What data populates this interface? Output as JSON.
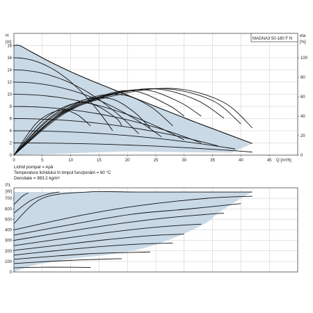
{
  "colors": {
    "fill": "#c9d9e6",
    "curve": "#111111",
    "frame": "#444444",
    "grid": "#bbbbbb"
  },
  "chart_data": [
    {
      "type": "line",
      "title": "MAGNA3 50-180 F N",
      "ylabel_left": "H",
      "ylabel_left_unit": "[m]",
      "ylabel_right": "eta",
      "ylabel_right_unit": "[%]",
      "xlabel": "Q [m³/h]",
      "xlim": [
        0,
        50
      ],
      "ylim": [
        0,
        20
      ],
      "eta_lim": [
        0,
        125
      ],
      "x_ticks": [
        "0",
        "5",
        "10",
        "15",
        "20",
        "25",
        "30",
        "35",
        "40",
        "45"
      ],
      "y_ticks": [
        "0",
        "2",
        "4",
        "6",
        "8",
        "10",
        "12",
        "14",
        "16",
        "18"
      ],
      "eta_ticks": [
        "0",
        "20",
        "40",
        "60",
        "80",
        "100"
      ],
      "grid": true,
      "envelope": {
        "x": [
          0,
          1,
          3,
          6,
          10,
          14,
          18,
          22,
          26,
          29,
          32,
          36,
          40,
          42
        ],
        "y": [
          18.0,
          18.0,
          17.0,
          15.5,
          13.7,
          12.1,
          10.6,
          9.1,
          7.6,
          6.5,
          5.4,
          4.0,
          2.6,
          1.9
        ]
      },
      "head_curves": [
        {
          "h0": 16.0,
          "x_end": 17.4
        },
        {
          "h0": 14.0,
          "x_end": 22.0
        },
        {
          "h0": 12.0,
          "x_end": 26.0
        },
        {
          "h0": 10.0,
          "x_end": 30.0
        },
        {
          "h0": 8.0,
          "x_end": 33.0
        },
        {
          "h0": 6.0,
          "x_end": 36.0
        },
        {
          "h0": 4.0,
          "x_end": 39.0
        },
        {
          "h0": 2.0,
          "x_end": 42.0
        }
      ],
      "eta_curves": [
        {
          "x": [
            0,
            4,
            8,
            11,
            13.5
          ],
          "y": [
            0,
            33,
            46,
            42,
            30
          ]
        },
        {
          "x": [
            0,
            5,
            10,
            14,
            18,
            19
          ],
          "y": [
            0,
            35,
            52,
            52,
            38,
            30
          ]
        },
        {
          "x": [
            0,
            6,
            12,
            17,
            21,
            24
          ],
          "y": [
            0,
            37,
            56,
            58,
            45,
            28
          ]
        },
        {
          "x": [
            0,
            7,
            13,
            19,
            24,
            28
          ],
          "y": [
            0,
            38,
            58,
            62,
            50,
            30
          ]
        },
        {
          "x": [
            0,
            7,
            15,
            21,
            27,
            30
          ],
          "y": [
            0,
            40,
            60,
            66,
            52,
            40
          ]
        },
        {
          "x": [
            0,
            8,
            16,
            23,
            29,
            33
          ],
          "y": [
            0,
            41,
            61,
            67,
            55,
            40
          ]
        },
        {
          "x": [
            0,
            8,
            17,
            25,
            32,
            37
          ],
          "y": [
            0,
            42,
            62,
            68,
            57,
            38
          ]
        },
        {
          "x": [
            0,
            9,
            18,
            27,
            35,
            40
          ],
          "y": [
            0,
            43,
            63,
            68,
            56,
            32
          ]
        },
        {
          "x": [
            0,
            9,
            20,
            29,
            37,
            42
          ],
          "y": [
            0,
            44,
            64,
            68,
            54,
            28
          ]
        }
      ]
    },
    {
      "type": "line",
      "ylabel": "P1",
      "ylabel_unit": "[W]",
      "xlim": [
        0,
        50
      ],
      "ylim": [
        0,
        800
      ],
      "y_ticks": [
        "0",
        "100",
        "200",
        "300",
        "400",
        "500",
        "600",
        "700"
      ],
      "grid": true,
      "envelope": {
        "x": [
          0,
          2,
          5,
          10,
          16,
          22,
          26,
          30,
          34,
          36,
          40,
          42
        ],
        "y": [
          0,
          40,
          80,
          125,
          160,
          215,
          280,
          365,
          470,
          560,
          700,
          760
        ]
      },
      "power_curves": [
        {
          "x": [
            0,
            5,
            10,
            13.5
          ],
          "y": [
            40,
            45,
            45,
            43
          ]
        },
        {
          "x": [
            0,
            6,
            12,
            18,
            19
          ],
          "y": [
            80,
            100,
            115,
            125,
            125
          ]
        },
        {
          "x": [
            0,
            7,
            14,
            20,
            24
          ],
          "y": [
            120,
            150,
            175,
            185,
            190
          ]
        },
        {
          "x": [
            0,
            7,
            15,
            22,
            28
          ],
          "y": [
            160,
            200,
            240,
            265,
            275
          ]
        },
        {
          "x": [
            0,
            8,
            16,
            24,
            30
          ],
          "y": [
            205,
            255,
            305,
            345,
            360
          ]
        },
        {
          "x": [
            0,
            9,
            18,
            26,
            33
          ],
          "y": [
            250,
            320,
            385,
            430,
            455
          ]
        },
        {
          "x": [
            0,
            10,
            20,
            28,
            37
          ],
          "y": [
            300,
            390,
            470,
            520,
            560
          ]
        },
        {
          "x": [
            0,
            11,
            21,
            31,
            40
          ],
          "y": [
            350,
            460,
            550,
            600,
            650
          ]
        },
        {
          "x": [
            0,
            12,
            22,
            34,
            42
          ],
          "y": [
            400,
            540,
            630,
            700,
            720
          ]
        },
        {
          "x": [
            0,
            5,
            13,
            22,
            42
          ],
          "y": [
            460,
            700,
            760,
            760,
            760
          ]
        },
        {
          "x": [
            0,
            3,
            6,
            8
          ],
          "y": [
            560,
            680,
            740,
            760
          ]
        },
        {
          "x": [
            0,
            1.5,
            2.5
          ],
          "y": [
            640,
            720,
            750
          ]
        }
      ]
    }
  ],
  "notes": {
    "liquid": "Lichid pompat = Apă",
    "temperature": "Temperatura lichidului în timpul funcţionării = 60 °C",
    "density": "Densitate = 983.2 kg/m³"
  }
}
